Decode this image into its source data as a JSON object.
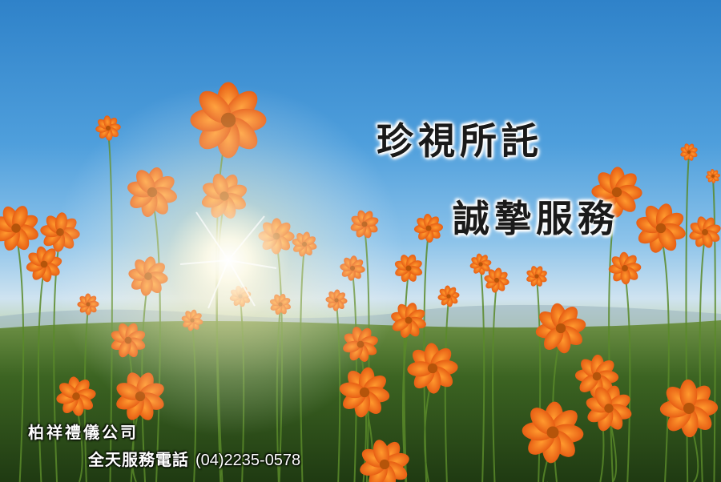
{
  "banner": {
    "headline_1": "珍視所託",
    "headline_2": "誠摯服務",
    "company_name": "柏祥禮儀公司",
    "phone_label": "全天服務電話",
    "phone_number": "(04)2235-0578"
  },
  "colors": {
    "sky_top": "#2f82c9",
    "sky_horizon": "#cfe3f0",
    "flower_orange": "#f26a1b",
    "foliage_green": "#3f6a26"
  }
}
